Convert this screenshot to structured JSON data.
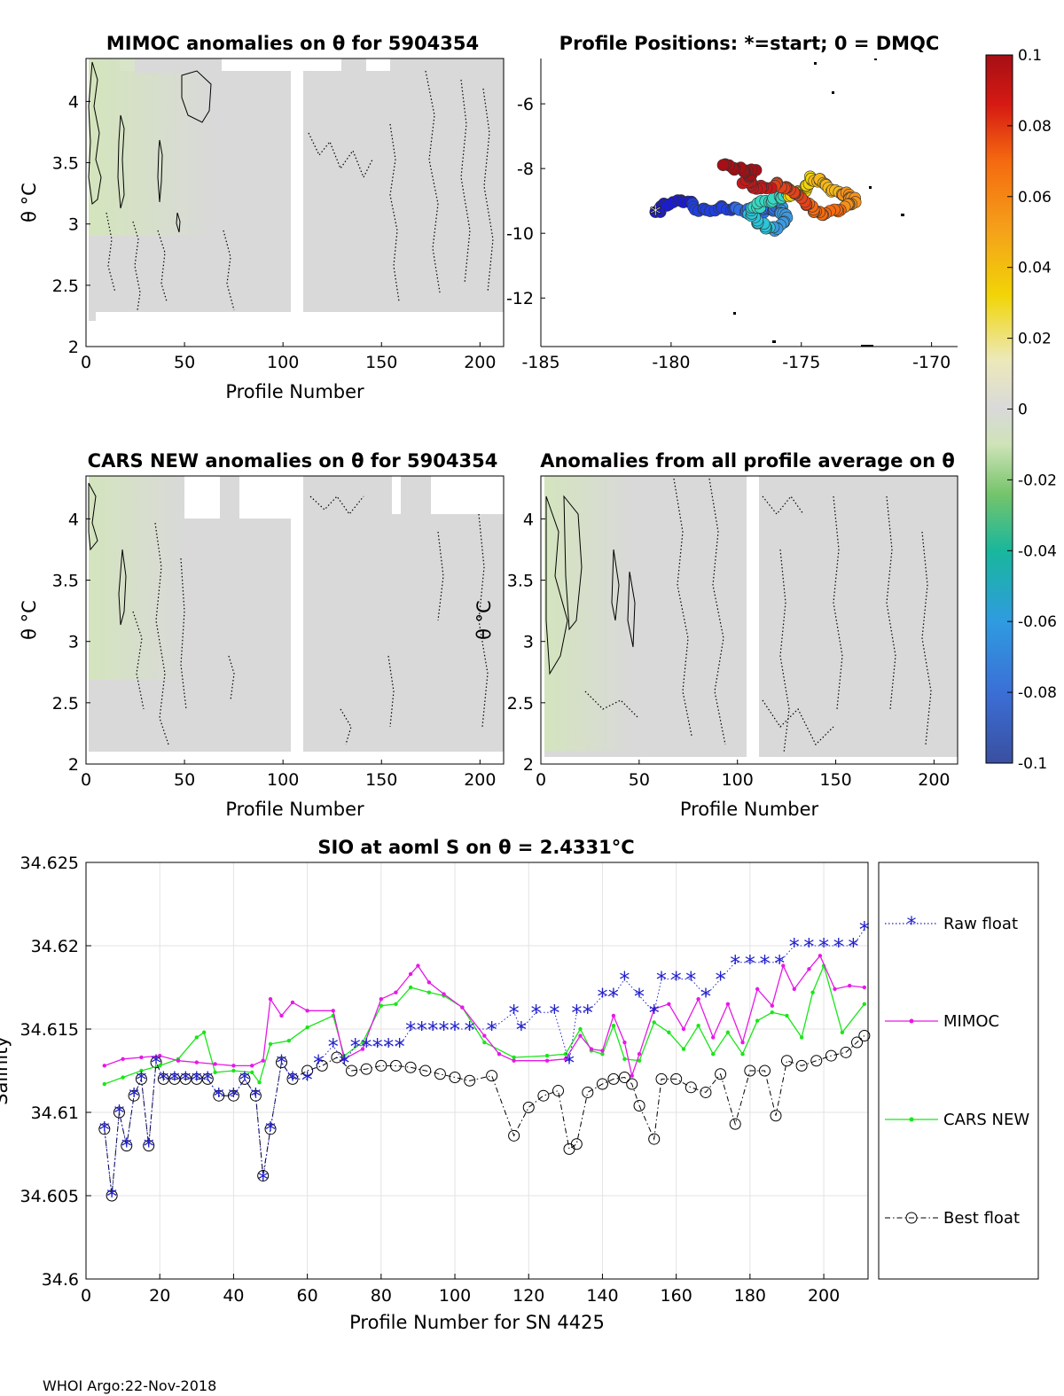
{
  "footer": "WHOI Argo:22-Nov-2018",
  "colors": {
    "grey_field": "#d9d9d9",
    "green_tint": "#dfeacd",
    "raw": "#1f1fcc",
    "mimoc": "#e619e6",
    "cars": "#19e619",
    "best": "#000000"
  },
  "chart_data": [
    {
      "id": "mimoc",
      "type": "heatmap",
      "title_text": "MIMOC anomalies on θ  for 5904354",
      "xlabel": "Profile Number",
      "ylabel": "θ °C",
      "xlim": [
        0,
        212
      ],
      "ylim": [
        2,
        4.35
      ],
      "xticks": [
        0,
        50,
        100,
        150,
        200
      ],
      "xtick_labels": [
        "0",
        "50",
        "100",
        "150",
        "200"
      ],
      "yticks": [
        2,
        2.5,
        3,
        3.5,
        4
      ],
      "ytick_labels": [
        "2",
        "2.5",
        "3",
        "3.5",
        "4"
      ]
    },
    {
      "id": "positions",
      "type": "scatter",
      "title_text": "Profile Positions: *=start; 0 = DMQC",
      "xlim": [
        -185,
        -169
      ],
      "ylim": [
        -13.5,
        -4.6
      ],
      "xticks": [
        -185,
        -180,
        -175,
        -170
      ],
      "xtick_labels": [
        "-185",
        "-180",
        "-175",
        "-170"
      ],
      "yticks": [
        -12,
        -10,
        -8,
        -6
      ],
      "ytick_labels": [
        "-12",
        "-10",
        "-8",
        "-6"
      ],
      "start": [
        -180.6,
        -9.4
      ]
    },
    {
      "id": "colorbar",
      "type": "colorbar",
      "range": [
        -0.1,
        0.1
      ],
      "ticks": [
        0.1,
        0.08,
        0.06,
        0.04,
        0.02,
        0,
        -0.02,
        -0.04,
        -0.06,
        -0.08,
        -0.1
      ],
      "tick_labels": [
        "0.1",
        "0.08",
        "0.06",
        "0.04",
        "0.02",
        "0",
        "-0.02",
        "-0.04",
        "-0.06",
        "-0.08",
        "-0.1"
      ]
    },
    {
      "id": "cars",
      "type": "heatmap",
      "title_text": "CARS NEW anomalies on θ for 5904354",
      "xlabel": "Profile Number",
      "ylabel": "θ °C",
      "xlim": [
        0,
        212
      ],
      "ylim": [
        2,
        4.35
      ],
      "xticks": [
        0,
        50,
        100,
        150,
        200
      ],
      "xtick_labels": [
        "0",
        "50",
        "100",
        "150",
        "200"
      ],
      "yticks": [
        2,
        2.5,
        3,
        3.5,
        4
      ],
      "ytick_labels": [
        "2",
        "2.5",
        "3",
        "3.5",
        "4"
      ]
    },
    {
      "id": "allprof",
      "type": "heatmap",
      "title_text": "Anomalies from all profile average on θ",
      "xlabel": "Profile Number",
      "ylabel": "θ °C",
      "xlim": [
        0,
        212
      ],
      "ylim": [
        2,
        4.35
      ],
      "xticks": [
        0,
        50,
        100,
        150,
        200
      ],
      "xtick_labels": [
        "0",
        "50",
        "100",
        "150",
        "200"
      ],
      "yticks": [
        2,
        2.5,
        3,
        3.5,
        4
      ],
      "ytick_labels": [
        "2",
        "2.5",
        "3",
        "3.5",
        "4"
      ]
    },
    {
      "id": "salinity",
      "type": "line",
      "title_text": "SIO at aoml S on θ = 2.4331°C",
      "xlabel": "Profile Number for SN 4425",
      "ylabel": "Salinity",
      "xlim": [
        0,
        212
      ],
      "ylim": [
        34.6,
        34.625
      ],
      "xticks": [
        0,
        20,
        40,
        60,
        80,
        100,
        120,
        140,
        160,
        180,
        200
      ],
      "xtick_labels": [
        "0",
        "20",
        "40",
        "60",
        "80",
        "100",
        "120",
        "140",
        "160",
        "180",
        "200"
      ],
      "yticks": [
        34.6,
        34.605,
        34.61,
        34.615,
        34.62,
        34.625
      ],
      "ytick_labels": [
        "34.6",
        "34.605",
        "34.61",
        "34.615",
        "34.62",
        "34.625"
      ],
      "legend": [
        "Raw float",
        "MIMOC",
        "CARS NEW",
        "Best float"
      ],
      "legend_position": "outside-right",
      "grid": true,
      "series": [
        {
          "name": "MIMOC",
          "x": [
            5,
            10,
            15,
            20,
            25,
            30,
            35,
            40,
            45,
            48,
            50,
            53,
            56,
            60,
            67,
            70,
            75,
            80,
            84,
            88,
            90,
            93,
            97,
            102,
            108,
            112,
            116,
            125,
            130,
            134,
            137,
            140,
            143,
            146,
            148,
            150,
            154,
            158,
            162,
            166,
            170,
            174,
            178,
            182,
            186,
            189,
            192,
            196,
            199,
            203,
            207,
            211
          ],
          "y": [
            34.6128,
            34.6132,
            34.6133,
            34.6134,
            34.6131,
            34.613,
            34.6129,
            34.6128,
            34.6128,
            34.6131,
            34.6168,
            34.6158,
            34.6166,
            34.6161,
            34.6161,
            34.6132,
            34.6138,
            34.6168,
            34.6172,
            34.6183,
            34.6188,
            34.6178,
            34.6171,
            34.6163,
            34.6146,
            34.6135,
            34.6131,
            34.6131,
            34.6132,
            34.6146,
            34.6138,
            34.6137,
            34.6158,
            34.6142,
            34.6122,
            34.6135,
            34.6162,
            34.6165,
            34.615,
            34.6168,
            34.6145,
            34.6165,
            34.6142,
            34.6174,
            34.6164,
            34.6188,
            34.6174,
            34.6186,
            34.6194,
            34.6174,
            34.6176,
            34.6175
          ]
        },
        {
          "name": "CARS NEW",
          "x": [
            5,
            10,
            15,
            20,
            25,
            30,
            32,
            35,
            40,
            45,
            47,
            50,
            55,
            60,
            67,
            70,
            75,
            80,
            84,
            88,
            93,
            97,
            102,
            108,
            116,
            125,
            130,
            134,
            137,
            140,
            143,
            146,
            150,
            154,
            158,
            162,
            166,
            170,
            174,
            178,
            182,
            186,
            190,
            194,
            197,
            200,
            205,
            211
          ],
          "y": [
            34.6117,
            34.6121,
            34.6125,
            34.6128,
            34.6132,
            34.6145,
            34.6148,
            34.6124,
            34.6125,
            34.6124,
            34.6118,
            34.6141,
            34.6143,
            34.6151,
            34.6158,
            34.6134,
            34.6142,
            34.6164,
            34.6165,
            34.6175,
            34.6172,
            34.617,
            34.6163,
            34.6142,
            34.6133,
            34.6134,
            34.6135,
            34.615,
            34.6137,
            34.6135,
            34.6152,
            34.6132,
            34.6131,
            34.6154,
            34.6148,
            34.6138,
            34.6152,
            34.6135,
            34.6148,
            34.6135,
            34.6155,
            34.616,
            34.6158,
            34.6145,
            34.6172,
            34.6188,
            34.6148,
            34.6165
          ]
        },
        {
          "name": "Raw float",
          "x": [
            5,
            7,
            9,
            11,
            13,
            15,
            17,
            19,
            21,
            24,
            27,
            30,
            33,
            36,
            40,
            43,
            46,
            48,
            50,
            53,
            56,
            60,
            63,
            67,
            70,
            73,
            76,
            79,
            82,
            85,
            88,
            91,
            94,
            97,
            100,
            104,
            110,
            116,
            118,
            122,
            127,
            131,
            133,
            136,
            140,
            143,
            146,
            150,
            154,
            156,
            160,
            164,
            168,
            172,
            176,
            180,
            184,
            188,
            192,
            196,
            200,
            204,
            208,
            211
          ],
          "y": [
            34.609,
            34.605,
            34.61,
            34.608,
            34.611,
            34.612,
            34.608,
            34.613,
            34.612,
            34.612,
            34.612,
            34.612,
            34.612,
            34.611,
            34.611,
            34.612,
            34.611,
            34.606,
            34.609,
            34.613,
            34.612,
            34.612,
            34.613,
            34.614,
            34.613,
            34.614,
            34.614,
            34.614,
            34.614,
            34.614,
            34.615,
            34.615,
            34.615,
            34.615,
            34.615,
            34.615,
            34.615,
            34.616,
            34.615,
            34.616,
            34.616,
            34.613,
            34.616,
            34.616,
            34.617,
            34.617,
            34.618,
            34.617,
            34.616,
            34.618,
            34.618,
            34.618,
            34.617,
            34.618,
            34.619,
            34.619,
            34.619,
            34.619,
            34.62,
            34.62,
            34.62,
            34.62,
            34.62,
            34.621
          ]
        },
        {
          "name": "Best float",
          "x": [
            5,
            7,
            9,
            11,
            13,
            15,
            17,
            19,
            21,
            24,
            27,
            30,
            33,
            36,
            40,
            43,
            46,
            48,
            50,
            53,
            56,
            60,
            64,
            68,
            72,
            76,
            80,
            84,
            88,
            92,
            96,
            100,
            104,
            110,
            116,
            120,
            124,
            128,
            131,
            133,
            136,
            140,
            143,
            146,
            148,
            150,
            154,
            156,
            160,
            164,
            168,
            172,
            176,
            180,
            184,
            187,
            190,
            194,
            198,
            202,
            206,
            209,
            211
          ],
          "y": [
            34.609,
            34.605,
            34.61,
            34.608,
            34.611,
            34.612,
            34.608,
            34.613,
            34.612,
            34.612,
            34.612,
            34.612,
            34.612,
            34.611,
            34.611,
            34.612,
            34.611,
            34.6062,
            34.609,
            34.613,
            34.612,
            34.6125,
            34.6128,
            34.6133,
            34.6125,
            34.6126,
            34.6128,
            34.6128,
            34.6127,
            34.6125,
            34.6123,
            34.6121,
            34.6119,
            34.6122,
            34.6086,
            34.6103,
            34.611,
            34.6113,
            34.6078,
            34.6081,
            34.6112,
            34.6117,
            34.612,
            34.6121,
            34.6117,
            34.6104,
            34.6084,
            34.612,
            34.612,
            34.6115,
            34.6112,
            34.6123,
            34.6093,
            34.6125,
            34.6125,
            34.6098,
            34.6131,
            34.6128,
            34.6131,
            34.6134,
            34.6136,
            34.6142,
            34.6146
          ]
        }
      ]
    }
  ]
}
